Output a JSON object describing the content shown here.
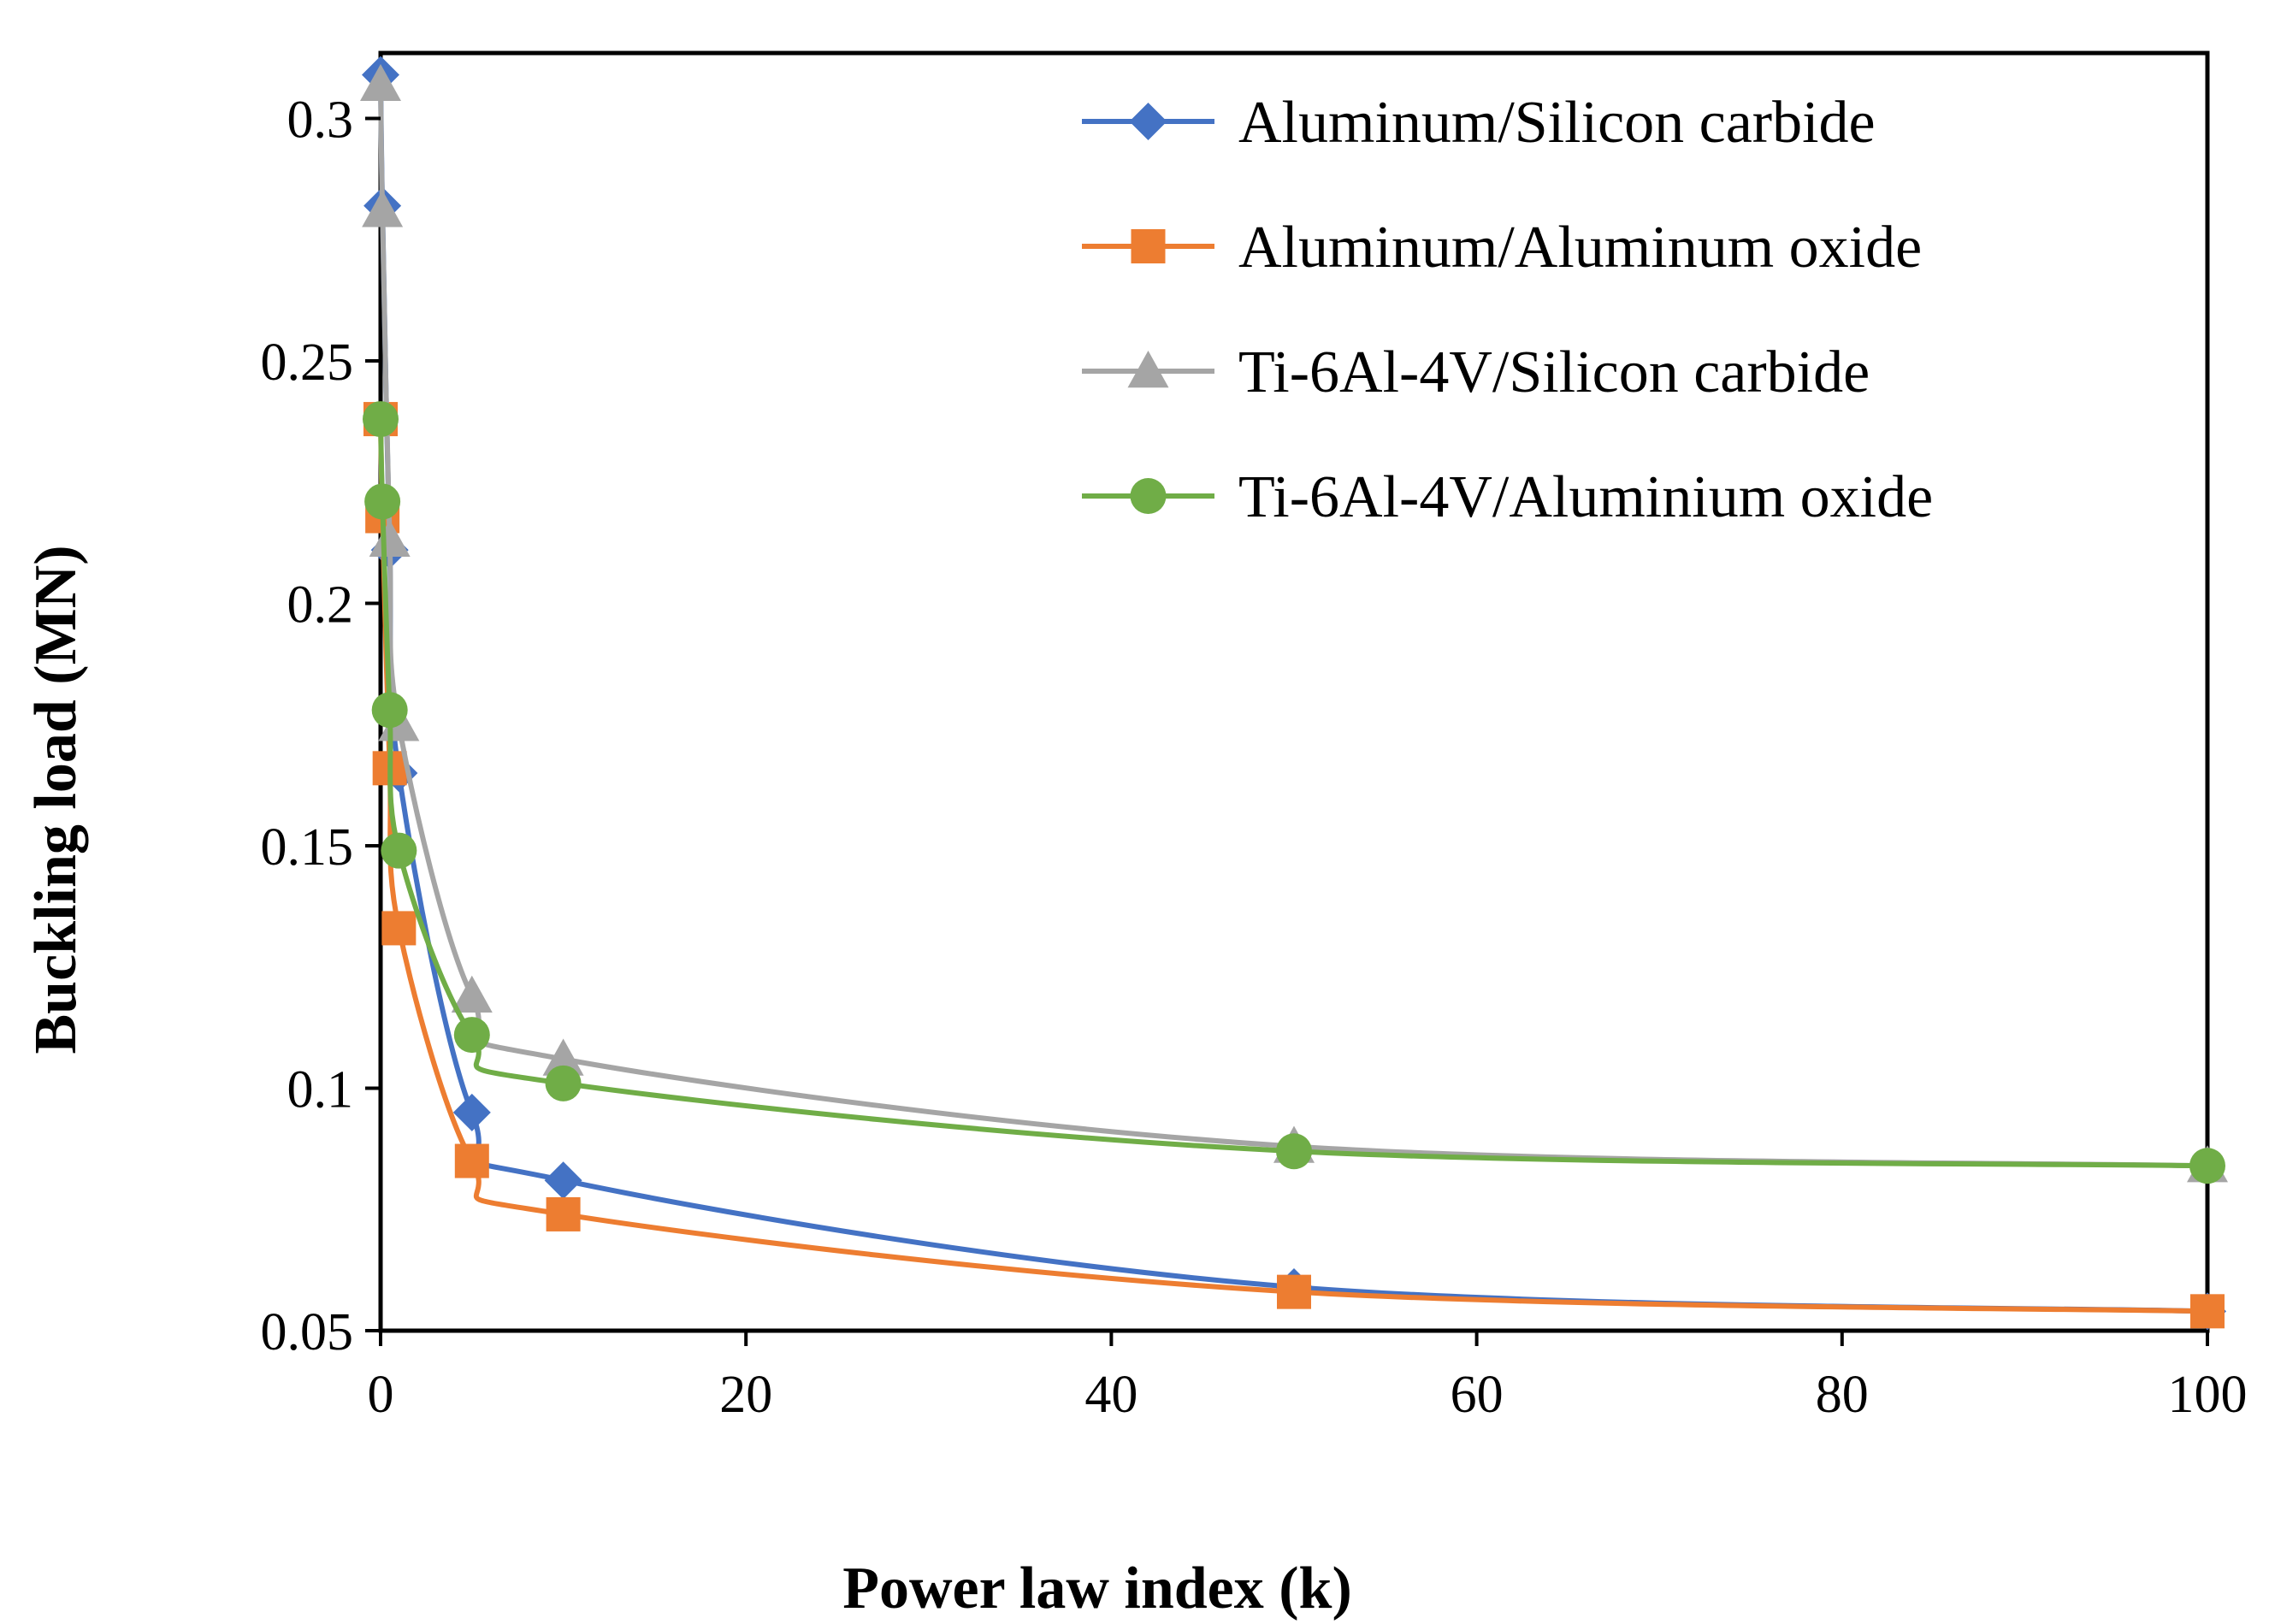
{
  "chart_data": {
    "type": "line",
    "xlabel": "Power law index (k)",
    "ylabel": "Buckling load (MN)",
    "xlim": [
      0,
      100
    ],
    "ylim": [
      0.05,
      0.3
    ],
    "x_ticks": [
      "0",
      "20",
      "40",
      "60",
      "80",
      "100"
    ],
    "y_ticks": [
      "0.05",
      "0.1",
      "0.15",
      "0.2",
      "0.25",
      "0.3"
    ],
    "grid": false,
    "legend_position": "top-right",
    "series": [
      {
        "name": "Aluminum/Silicon carbide",
        "marker": "diamond",
        "color": "#4472C4",
        "x": [
          0,
          0.1,
          0.5,
          1,
          5,
          10,
          50,
          100
        ],
        "y": [
          0.309,
          0.282,
          0.211,
          0.165,
          0.095,
          0.081,
          0.059,
          0.054
        ]
      },
      {
        "name": "Aluminum/Aluminum oxide",
        "marker": "square",
        "color": "#ED7D31",
        "x": [
          0,
          0.1,
          0.5,
          1,
          5,
          10,
          50,
          100
        ],
        "y": [
          0.238,
          0.218,
          0.166,
          0.133,
          0.085,
          0.074,
          0.058,
          0.054
        ]
      },
      {
        "name": "Ti-6Al-4V/Silicon carbide",
        "marker": "triangle",
        "color": "#A5A5A5",
        "x": [
          0,
          0.1,
          0.5,
          1,
          5,
          10,
          50,
          100
        ],
        "y": [
          0.307,
          0.281,
          0.213,
          0.175,
          0.119,
          0.106,
          0.088,
          0.084
        ]
      },
      {
        "name": "Ti-6Al-4V/Aluminium oxide",
        "marker": "circle",
        "color": "#70AD47",
        "x": [
          0,
          0.1,
          0.5,
          1,
          5,
          10,
          50,
          100
        ],
        "y": [
          0.238,
          0.221,
          0.178,
          0.149,
          0.111,
          0.101,
          0.087,
          0.084
        ]
      }
    ]
  }
}
